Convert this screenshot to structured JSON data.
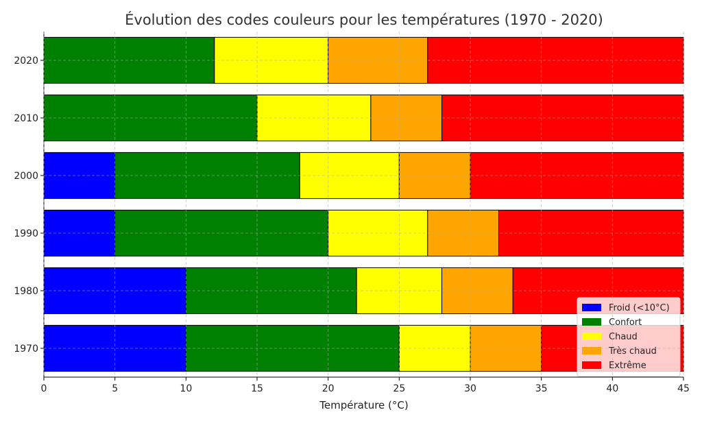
{
  "chart_data": {
    "type": "bar",
    "orientation": "horizontal",
    "stacked": true,
    "title": "Évolution des codes couleurs pour les températures (1970 - 2020)",
    "xlabel": "Température (°C)",
    "ylabel": "",
    "xlim": [
      0,
      45
    ],
    "xticks": [
      0,
      5,
      10,
      15,
      20,
      25,
      30,
      35,
      40,
      45
    ],
    "grid": true,
    "legend_position": "bottom-right",
    "categories": [
      "1970",
      "1980",
      "1990",
      "2000",
      "2010",
      "2020"
    ],
    "series": [
      {
        "name": "Froid (<10°C)",
        "color": "#0000ff",
        "values": [
          10,
          10,
          5,
          5,
          0,
          0
        ]
      },
      {
        "name": "Confort",
        "color": "#008000",
        "values": [
          15,
          12,
          15,
          13,
          15,
          12
        ]
      },
      {
        "name": "Chaud",
        "color": "#ffff00",
        "values": [
          5,
          6,
          7,
          7,
          8,
          8
        ]
      },
      {
        "name": "Très chaud",
        "color": "#ffa500",
        "values": [
          5,
          5,
          5,
          5,
          5,
          7
        ]
      },
      {
        "name": "Extrême",
        "color": "#ff0000",
        "values": [
          10,
          12,
          13,
          15,
          17,
          18
        ]
      }
    ]
  }
}
